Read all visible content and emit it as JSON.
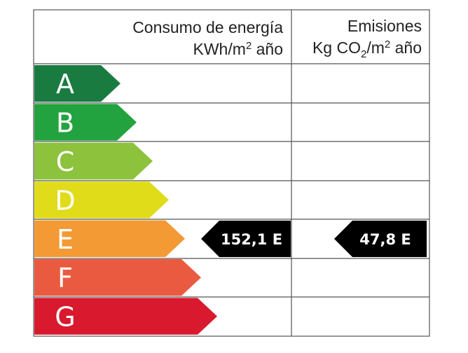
{
  "header": {
    "energy_title": "Consumo de energía",
    "energy_unit_pre": "KWh/m",
    "energy_unit_sup": "2",
    "energy_unit_post": " año",
    "emissions_title": "Emisiones",
    "emissions_unit_pre": "Kg CO",
    "emissions_unit_sub": "2",
    "emissions_unit_mid": "/m",
    "emissions_unit_sup": "2",
    "emissions_unit_post": " año"
  },
  "ratings": [
    {
      "letter": "A",
      "color": "#1a7b40"
    },
    {
      "letter": "B",
      "color": "#23a33f"
    },
    {
      "letter": "C",
      "color": "#8cc23c"
    },
    {
      "letter": "D",
      "color": "#e0dc1a"
    },
    {
      "letter": "E",
      "color": "#f39a35"
    },
    {
      "letter": "F",
      "color": "#ea5a40"
    },
    {
      "letter": "G",
      "color": "#d8192e"
    }
  ],
  "current": {
    "rating": "E",
    "energy_value": "152,1 E",
    "emissions_value": "47,8 E",
    "indicator_color": "#000000"
  }
}
